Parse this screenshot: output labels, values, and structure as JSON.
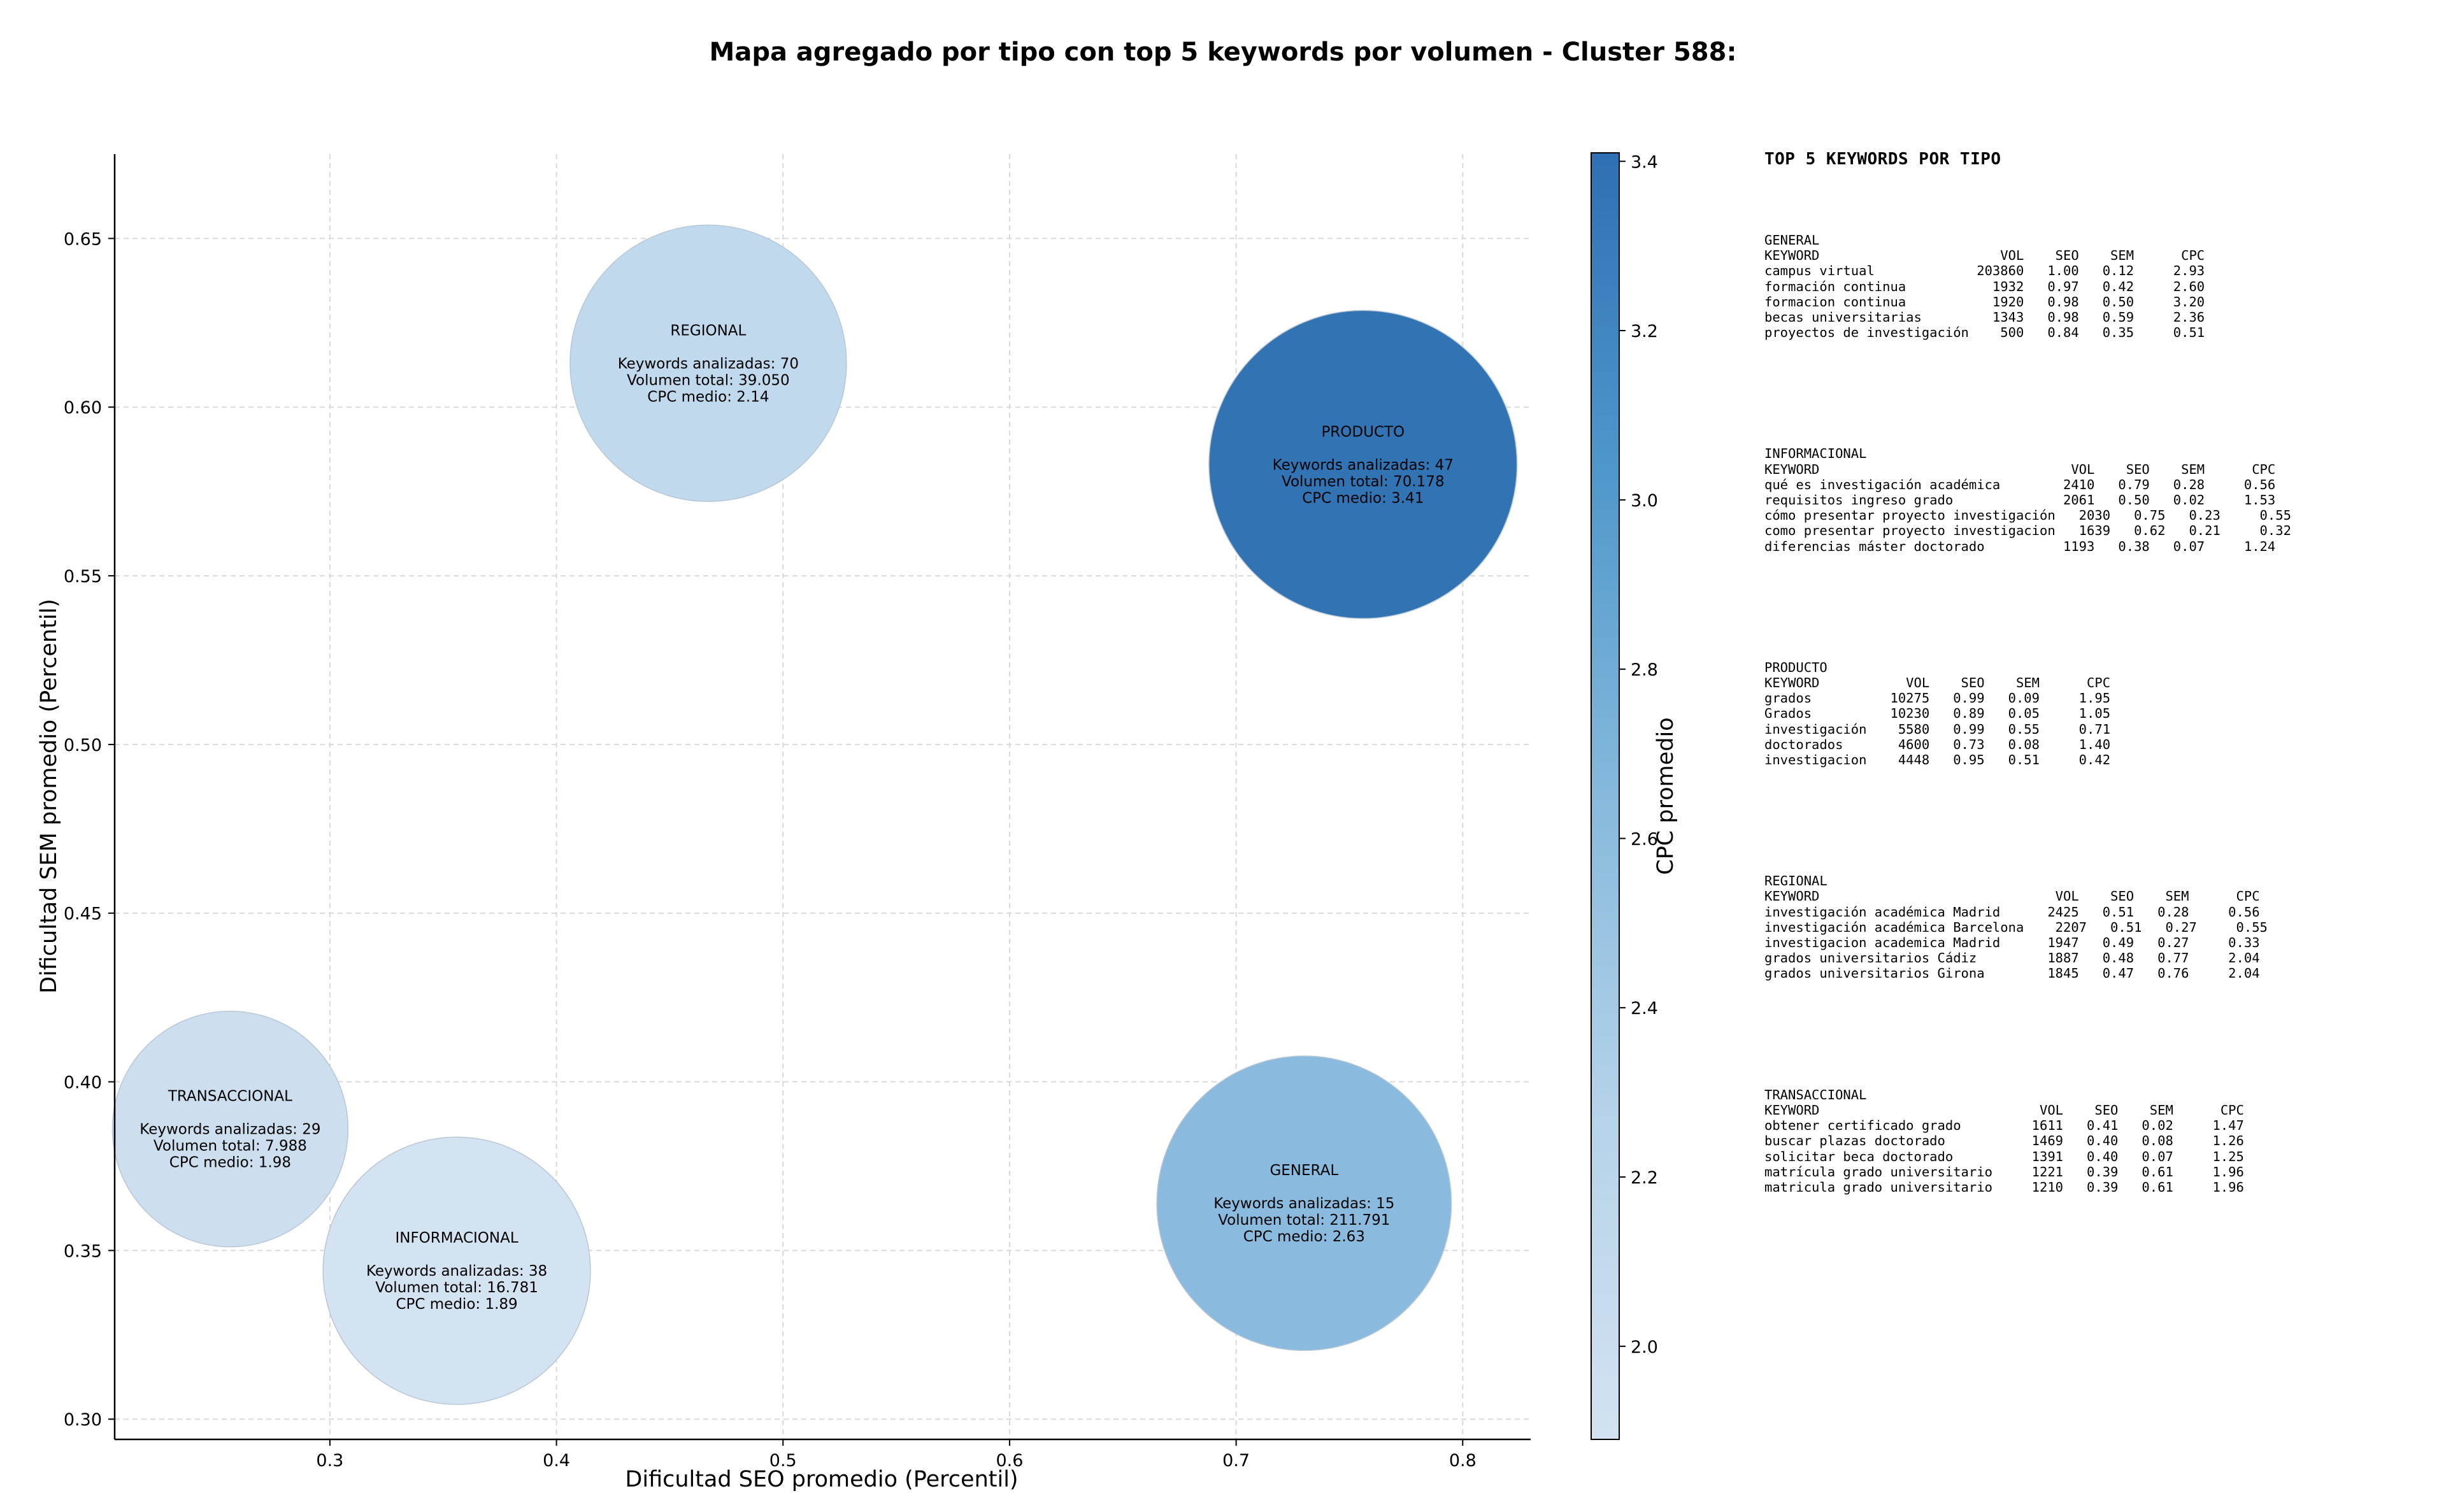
{
  "chart_data": {
    "type": "scatter",
    "title": "Mapa agregado por tipo con top 5 keywords por volumen - Cluster 588:",
    "xlabel": "Dificultad SEO promedio (Percentil)",
    "ylabel": "Dificultad SEM promedio (Percentil)",
    "xlim": [
      0.205,
      0.83
    ],
    "ylim": [
      0.294,
      0.675
    ],
    "xticks": [
      0.3,
      0.4,
      0.5,
      0.6,
      0.7,
      0.8
    ],
    "xtick_labels": [
      "0.3",
      "0.4",
      "0.5",
      "0.6",
      "0.7",
      "0.8"
    ],
    "yticks": [
      0.3,
      0.35,
      0.4,
      0.45,
      0.5,
      0.55,
      0.6,
      0.65
    ],
    "ytick_labels": [
      "0.30",
      "0.35",
      "0.40",
      "0.45",
      "0.50",
      "0.55",
      "0.60",
      "0.65"
    ],
    "grid": true,
    "colorbar": {
      "label": "CPC promedio",
      "min": 1.89,
      "max": 3.41,
      "ticks": [
        2.0,
        2.2,
        2.4,
        2.6,
        2.8,
        3.0,
        3.2,
        3.4
      ],
      "tick_labels": [
        "2.0",
        "2.2",
        "2.4",
        "2.6",
        "2.8",
        "3.0",
        "3.2",
        "3.4"
      ],
      "colors": [
        "#d3e2f1",
        "#2e70b3"
      ]
    },
    "points": [
      {
        "name": "REGIONAL",
        "x": 0.467,
        "y": 0.613,
        "radius_data": 0.061,
        "cpc": 2.14,
        "lines": [
          "REGIONAL",
          "",
          "Keywords analizadas: 70",
          "Volumen total: 39.050",
          "CPC medio: 2.14"
        ]
      },
      {
        "name": "PRODUCTO",
        "x": 0.756,
        "y": 0.583,
        "radius_data": 0.068,
        "cpc": 3.41,
        "lines": [
          "PRODUCTO",
          "",
          "Keywords analizadas: 47",
          "Volumen total: 70.178",
          "CPC medio: 3.41"
        ]
      },
      {
        "name": "TRANSACCIONAL",
        "x": 0.256,
        "y": 0.386,
        "radius_data": 0.052,
        "cpc": 1.98,
        "lines": [
          "TRANSACCIONAL",
          "",
          "Keywords analizadas: 29",
          "Volumen total: 7.988",
          "CPC medio: 1.98"
        ]
      },
      {
        "name": "INFORMACIONAL",
        "x": 0.356,
        "y": 0.344,
        "radius_data": 0.059,
        "cpc": 1.89,
        "lines": [
          "INFORMACIONAL",
          "",
          "Keywords analizadas: 38",
          "Volumen total: 16.781",
          "CPC medio: 1.89"
        ]
      },
      {
        "name": "GENERAL",
        "x": 0.73,
        "y": 0.364,
        "radius_data": 0.065,
        "cpc": 2.63,
        "lines": [
          "GENERAL",
          "",
          "Keywords analizadas: 15",
          "Volumen total: 211.791",
          "CPC medio: 2.63"
        ]
      }
    ]
  },
  "panel": {
    "title": "TOP 5 KEYWORDS POR TIPO",
    "blocks": [
      {
        "lines": [
          "GENERAL",
          "KEYWORD                       VOL    SEO    SEM      CPC",
          "campus virtual             203860   1.00   0.12     2.93",
          "formación continua           1932   0.97   0.42     2.60",
          "formacion continua           1920   0.98   0.50     3.20",
          "becas universitarias         1343   0.98   0.59     2.36",
          "proyectos de investigación    500   0.84   0.35     0.51"
        ]
      },
      {
        "lines": [
          "INFORMACIONAL",
          "KEYWORD                                VOL    SEO    SEM      CPC",
          "qué es investigación académica        2410   0.79   0.28     0.56",
          "requisitos ingreso grado              2061   0.50   0.02     1.53",
          "cómo presentar proyecto investigación   2030   0.75   0.23     0.55",
          "como presentar proyecto investigacion   1639   0.62   0.21     0.32",
          "diferencias máster doctorado          1193   0.38   0.07     1.24"
        ]
      },
      {
        "lines": [
          "PRODUCTO",
          "KEYWORD           VOL    SEO    SEM      CPC",
          "grados          10275   0.99   0.09     1.95",
          "Grados          10230   0.89   0.05     1.05",
          "investigación    5580   0.99   0.55     0.71",
          "doctorados       4600   0.73   0.08     1.40",
          "investigacion    4448   0.95   0.51     0.42"
        ]
      },
      {
        "lines": [
          "REGIONAL",
          "KEYWORD                              VOL    SEO    SEM      CPC",
          "investigación académica Madrid      2425   0.51   0.28     0.56",
          "investigación académica Barcelona    2207   0.51   0.27     0.55",
          "investigacion academica Madrid      1947   0.49   0.27     0.33",
          "grados universitarios Cádiz         1887   0.48   0.77     2.04",
          "grados universitarios Girona        1845   0.47   0.76     2.04"
        ]
      },
      {
        "lines": [
          "TRANSACCIONAL",
          "KEYWORD                            VOL    SEO    SEM      CPC",
          "obtener certificado grado         1611   0.41   0.02     1.47",
          "buscar plazas doctorado           1469   0.40   0.08     1.26",
          "solicitar beca doctorado          1391   0.40   0.07     1.25",
          "matrícula grado universitario     1221   0.39   0.61     1.96",
          "matricula grado universitario     1210   0.39   0.61     1.96"
        ]
      }
    ]
  }
}
